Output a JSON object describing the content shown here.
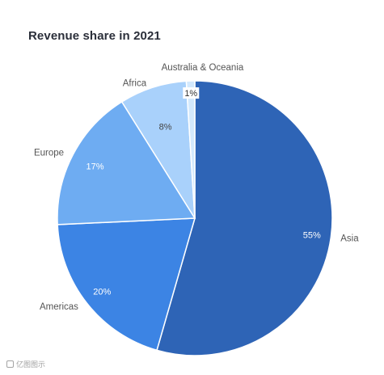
{
  "chart_data": {
    "type": "pie",
    "title": "Revenue share in 2021",
    "categories": [
      "Asia",
      "Americas",
      "Europe",
      "Africa",
      "Australia & Oceania"
    ],
    "values": [
      55,
      20,
      17,
      8,
      1
    ],
    "value_labels": [
      "55%",
      "20%",
      "17%",
      "8%",
      "1%"
    ],
    "start_angle": "12 o'clock",
    "direction": "clockwise",
    "colors": [
      "#2e64b6",
      "#3c84e4",
      "#6eacf2",
      "#a9d1fb",
      "#d3e9fd"
    ],
    "legend": "none",
    "label_position": "outside"
  },
  "watermark": {
    "text": "亿图图示"
  }
}
